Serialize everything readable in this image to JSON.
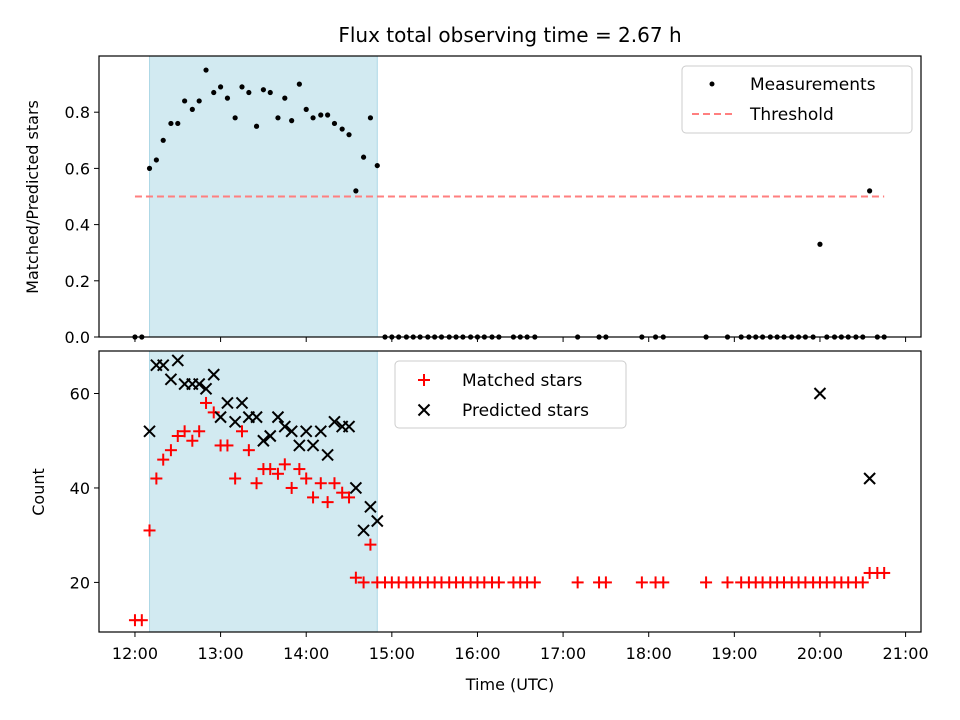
{
  "title": "Flux total observing time = 2.67 h",
  "colors": {
    "observing_span": "#add8e6",
    "measurements": "#000000",
    "threshold": "#ff7f7f",
    "matched": "#ff0000",
    "predicted": "#000000"
  },
  "chart_data": [
    {
      "type": "scatter",
      "ylabel": "Matched/Predicted stars",
      "ylim": [
        0,
        1.0
      ],
      "yticks": [
        0.0,
        0.2,
        0.4,
        0.6,
        0.8
      ],
      "ytick_labels": [
        "0.0",
        "0.2",
        "0.4",
        "0.6",
        "0.8"
      ],
      "xlim": [
        11.58,
        21.18
      ],
      "legend": {
        "position": "top-right",
        "entries": [
          "Measurements",
          "Threshold"
        ]
      },
      "shaded_span": [
        12.17,
        14.83
      ],
      "threshold": {
        "name": "Threshold",
        "y": 0.5,
        "x": [
          12.0,
          20.75
        ]
      },
      "series": [
        {
          "name": "Measurements",
          "x": [
            12.0,
            12.08,
            12.17,
            12.25,
            12.33,
            12.42,
            12.5,
            12.58,
            12.67,
            12.75,
            12.83,
            12.92,
            13.0,
            13.08,
            13.17,
            13.25,
            13.33,
            13.42,
            13.5,
            13.58,
            13.67,
            13.75,
            13.83,
            13.92,
            14.0,
            14.08,
            14.17,
            14.25,
            14.33,
            14.42,
            14.5,
            14.58,
            14.67,
            14.75,
            14.83,
            14.92,
            15.0,
            15.08,
            15.17,
            15.25,
            15.33,
            15.42,
            15.5,
            15.58,
            15.67,
            15.75,
            15.83,
            15.92,
            16.0,
            16.08,
            16.17,
            16.25,
            16.42,
            16.5,
            16.58,
            16.67,
            17.17,
            17.42,
            17.5,
            17.92,
            18.08,
            18.17,
            18.67,
            18.92,
            19.08,
            19.17,
            19.25,
            19.33,
            19.42,
            19.5,
            19.58,
            19.67,
            19.75,
            19.83,
            19.92,
            20.0,
            20.08,
            20.17,
            20.25,
            20.33,
            20.42,
            20.5,
            20.58,
            20.67,
            20.75
          ],
          "y": [
            0.0,
            0.0,
            0.6,
            0.63,
            0.7,
            0.76,
            0.76,
            0.84,
            0.81,
            0.84,
            0.95,
            0.87,
            0.89,
            0.85,
            0.78,
            0.89,
            0.87,
            0.75,
            0.88,
            0.87,
            0.78,
            0.85,
            0.77,
            0.9,
            0.81,
            0.78,
            0.79,
            0.79,
            0.76,
            0.74,
            0.72,
            0.52,
            0.64,
            0.78,
            0.61,
            0.0,
            0.0,
            0.0,
            0.0,
            0.0,
            0.0,
            0.0,
            0.0,
            0.0,
            0.0,
            0.0,
            0.0,
            0.0,
            0.0,
            0.0,
            0.0,
            0.0,
            0.0,
            0.0,
            0.0,
            0.0,
            0.0,
            0.0,
            0.0,
            0.0,
            0.0,
            0.0,
            0.0,
            0.0,
            0.0,
            0.0,
            0.0,
            0.0,
            0.0,
            0.0,
            0.0,
            0.0,
            0.0,
            0.0,
            0.0,
            0.33,
            0.0,
            0.0,
            0.0,
            0.0,
            0.0,
            0.0,
            0.52,
            0.0,
            0.0
          ]
        }
      ]
    },
    {
      "type": "scatter",
      "xlabel": "Time (UTC)",
      "ylabel": "Count",
      "ylim": [
        9.5,
        69
      ],
      "yticks": [
        20,
        40,
        60
      ],
      "ytick_labels": [
        "20",
        "40",
        "60"
      ],
      "xlim": [
        11.58,
        21.18
      ],
      "xticks": [
        12,
        13,
        14,
        15,
        16,
        17,
        18,
        19,
        20,
        21
      ],
      "xtick_labels": [
        "12:00",
        "13:00",
        "14:00",
        "15:00",
        "16:00",
        "17:00",
        "18:00",
        "19:00",
        "20:00",
        "21:00"
      ],
      "legend": {
        "position": "top-center",
        "entries": [
          "Matched stars",
          "Predicted stars"
        ]
      },
      "shaded_span": [
        12.17,
        14.83
      ],
      "series": [
        {
          "name": "Matched stars",
          "marker": "plus",
          "x": [
            12.0,
            12.08,
            12.17,
            12.25,
            12.33,
            12.42,
            12.5,
            12.58,
            12.67,
            12.75,
            12.83,
            12.92,
            13.0,
            13.08,
            13.17,
            13.25,
            13.33,
            13.42,
            13.5,
            13.58,
            13.67,
            13.75,
            13.83,
            13.92,
            14.0,
            14.08,
            14.17,
            14.25,
            14.33,
            14.42,
            14.5,
            14.58,
            14.67,
            14.75,
            14.83,
            14.92,
            15.0,
            15.08,
            15.17,
            15.25,
            15.33,
            15.42,
            15.5,
            15.58,
            15.67,
            15.75,
            15.83,
            15.92,
            16.0,
            16.08,
            16.17,
            16.25,
            16.42,
            16.5,
            16.58,
            16.67,
            17.17,
            17.42,
            17.5,
            17.92,
            18.08,
            18.17,
            18.67,
            18.92,
            19.08,
            19.17,
            19.25,
            19.33,
            19.42,
            19.5,
            19.58,
            19.67,
            19.75,
            19.83,
            19.92,
            20.0,
            20.08,
            20.17,
            20.25,
            20.33,
            20.42,
            20.5,
            20.58,
            20.67,
            20.75
          ],
          "y": [
            12,
            12,
            31,
            42,
            46,
            48,
            51,
            52,
            50,
            52,
            58,
            56,
            49,
            49,
            42,
            52,
            48,
            41,
            44,
            44,
            43,
            45,
            40,
            44,
            42,
            38,
            41,
            37,
            41,
            39,
            38,
            21,
            20,
            28,
            20,
            20,
            20,
            20,
            20,
            20,
            20,
            20,
            20,
            20,
            20,
            20,
            20,
            20,
            20,
            20,
            20,
            20,
            20,
            20,
            20,
            20,
            20,
            20,
            20,
            20,
            20,
            20,
            20,
            20,
            20,
            20,
            20,
            20,
            20,
            20,
            20,
            20,
            20,
            20,
            20,
            20,
            20,
            20,
            20,
            20,
            20,
            20,
            22,
            22,
            22
          ]
        },
        {
          "name": "Predicted stars",
          "marker": "x",
          "x": [
            12.17,
            12.25,
            12.33,
            12.42,
            12.5,
            12.58,
            12.67,
            12.75,
            12.83,
            12.92,
            13.0,
            13.08,
            13.17,
            13.25,
            13.33,
            13.42,
            13.5,
            13.58,
            13.67,
            13.75,
            13.83,
            13.92,
            14.0,
            14.08,
            14.17,
            14.25,
            14.33,
            14.42,
            14.5,
            14.58,
            14.67,
            14.75,
            14.83,
            20.0,
            20.58
          ],
          "y": [
            52,
            66,
            66,
            63,
            67,
            62,
            62,
            62,
            61,
            64,
            55,
            58,
            54,
            58,
            55,
            55,
            50,
            51,
            55,
            53,
            52,
            49,
            52,
            49,
            52,
            47,
            54,
            53,
            53,
            40,
            31,
            36,
            33,
            60,
            42
          ]
        }
      ]
    }
  ]
}
